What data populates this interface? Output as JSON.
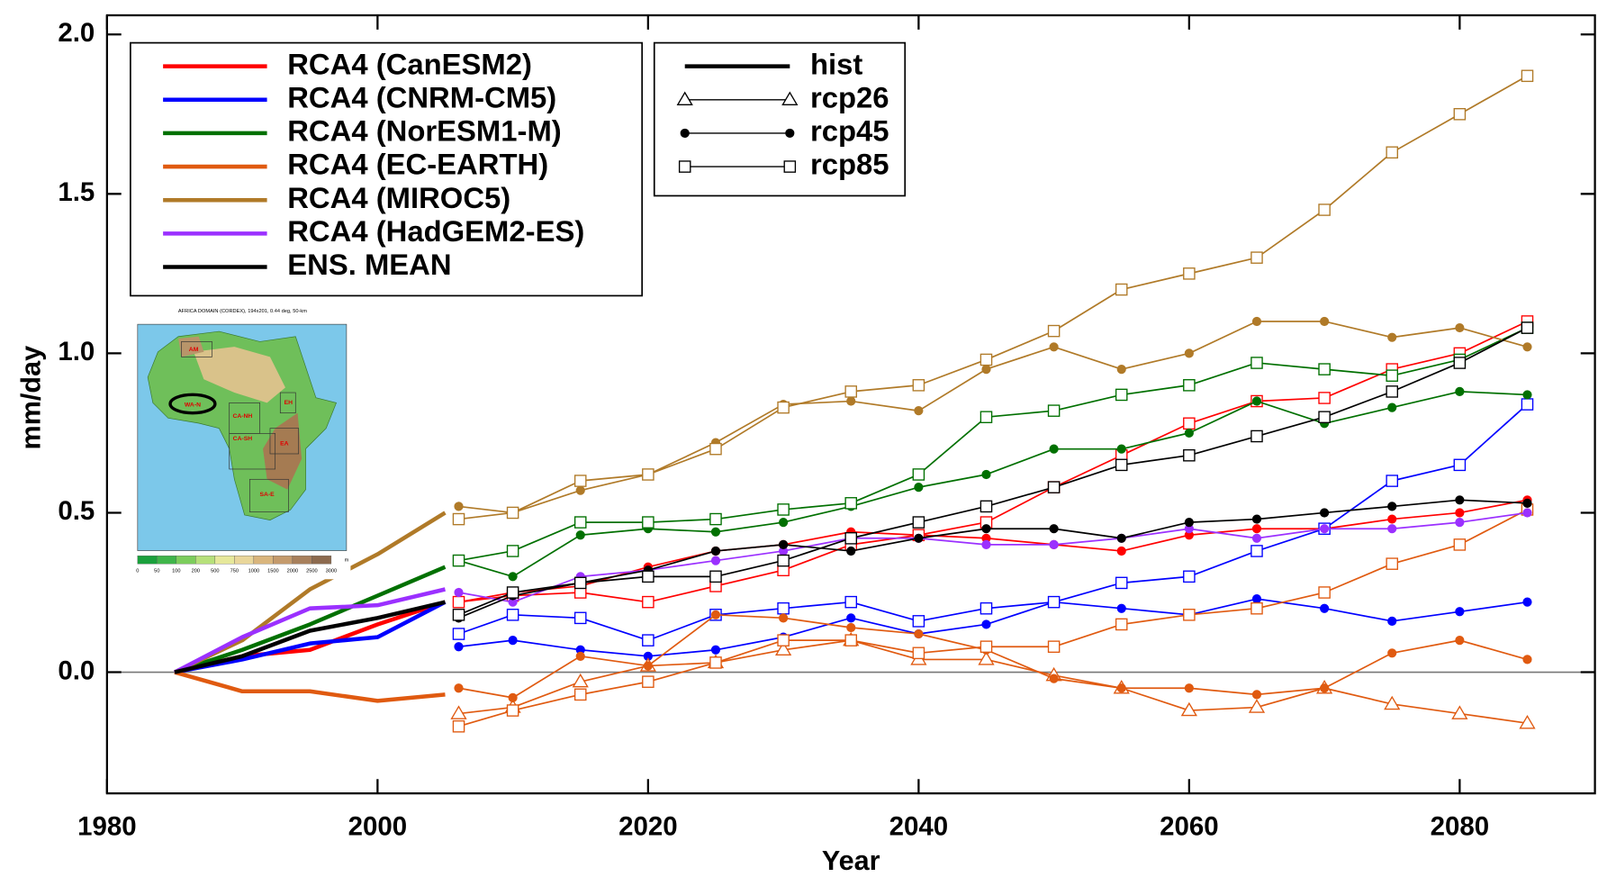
{
  "chart_data": {
    "type": "line",
    "xlabel": "Year",
    "ylabel": "mm/day",
    "xlim": [
      1980,
      2090
    ],
    "ylim": [
      -0.38,
      2.06
    ],
    "xticks": [
      1980,
      2000,
      2020,
      2040,
      2060,
      2080
    ],
    "yticks": [
      {
        "value": 0,
        "label": "0.0"
      },
      {
        "value": 0.5,
        "label": "0.5"
      },
      {
        "value": 1,
        "label": "1.0"
      },
      {
        "value": 1.5,
        "label": "1.5"
      },
      {
        "value": 2,
        "label": "2.0"
      }
    ],
    "x": [
      1985,
      1990,
      1995,
      2000,
      2005,
      2006,
      2010,
      2015,
      2020,
      2025,
      2030,
      2035,
      2040,
      2045,
      2050,
      2055,
      2060,
      2065,
      2070,
      2075,
      2080,
      2085
    ],
    "scenarios": [
      {
        "name": "hist",
        "marker": "none"
      },
      {
        "name": "rcp26",
        "marker": "triangle"
      },
      {
        "name": "rcp45",
        "marker": "circle"
      },
      {
        "name": "rcp85",
        "marker": "square"
      }
    ],
    "models": [
      {
        "name": "RCA4 (CanESM2)",
        "color": "#ff0000",
        "values": [
          [
            0,
            0.05,
            0.07,
            0.15,
            0.22,
            null,
            null,
            null,
            null,
            null,
            null,
            null,
            null,
            null,
            null,
            null,
            null,
            null,
            null,
            null,
            null,
            null
          ],
          null,
          [
            null,
            null,
            null,
            null,
            null,
            0.22,
            0.25,
            0.27,
            0.33,
            0.38,
            0.4,
            0.44,
            0.43,
            0.42,
            0.4,
            0.38,
            0.43,
            0.45,
            0.45,
            0.48,
            0.5,
            0.54
          ],
          [
            null,
            null,
            null,
            null,
            null,
            0.22,
            0.24,
            0.25,
            0.22,
            0.27,
            0.32,
            0.4,
            0.43,
            0.47,
            0.58,
            0.68,
            0.78,
            0.85,
            0.86,
            0.95,
            1.0,
            1.1
          ]
        ]
      },
      {
        "name": "RCA4 (CNRM-CM5)",
        "color": "#0000ff",
        "values": [
          [
            0,
            0.04,
            0.09,
            0.11,
            0.22,
            null,
            null,
            null,
            null,
            null,
            null,
            null,
            null,
            null,
            null,
            null,
            null,
            null,
            null,
            null,
            null,
            null
          ],
          null,
          [
            null,
            null,
            null,
            null,
            null,
            0.08,
            0.1,
            0.07,
            0.05,
            0.07,
            0.11,
            0.17,
            0.12,
            0.15,
            0.22,
            0.2,
            0.18,
            0.23,
            0.2,
            0.16,
            0.19,
            0.22
          ],
          [
            null,
            null,
            null,
            null,
            null,
            0.12,
            0.18,
            0.17,
            0.1,
            0.18,
            0.2,
            0.22,
            0.16,
            0.2,
            0.22,
            0.28,
            0.3,
            0.38,
            0.45,
            0.6,
            0.65,
            0.84
          ]
        ]
      },
      {
        "name": "RCA4 (NorESM1-M)",
        "color": "#007000",
        "values": [
          [
            0,
            0.07,
            0.15,
            0.24,
            0.33,
            null,
            null,
            null,
            null,
            null,
            null,
            null,
            null,
            null,
            null,
            null,
            null,
            null,
            null,
            null,
            null,
            null
          ],
          null,
          [
            null,
            null,
            null,
            null,
            null,
            0.35,
            0.3,
            0.43,
            0.45,
            0.44,
            0.47,
            0.52,
            0.58,
            0.62,
            0.7,
            0.7,
            0.75,
            0.85,
            0.78,
            0.83,
            0.88,
            0.87
          ],
          [
            null,
            null,
            null,
            null,
            null,
            0.35,
            0.38,
            0.47,
            0.47,
            0.48,
            0.51,
            0.53,
            0.62,
            0.8,
            0.82,
            0.87,
            0.9,
            0.97,
            0.95,
            0.93,
            0.98,
            1.08
          ]
        ]
      },
      {
        "name": "RCA4 (EC-EARTH)",
        "color": "#e05a10",
        "values": [
          [
            0,
            -0.06,
            -0.06,
            -0.09,
            -0.07,
            null,
            null,
            null,
            null,
            null,
            null,
            null,
            null,
            null,
            null,
            null,
            null,
            null,
            null,
            null,
            null,
            null
          ],
          [
            null,
            null,
            null,
            null,
            null,
            -0.13,
            -0.11,
            -0.03,
            0.02,
            0.03,
            0.07,
            0.1,
            0.04,
            0.04,
            -0.01,
            -0.05,
            -0.12,
            -0.11,
            -0.05,
            -0.1,
            -0.13,
            -0.16
          ],
          [
            null,
            null,
            null,
            null,
            null,
            -0.05,
            -0.08,
            0.05,
            0.02,
            0.18,
            0.17,
            0.14,
            0.12,
            0.07,
            -0.02,
            -0.05,
            -0.05,
            -0.07,
            -0.05,
            0.06,
            0.1,
            0.04
          ],
          [
            null,
            null,
            null,
            null,
            null,
            -0.17,
            -0.12,
            -0.07,
            -0.03,
            0.03,
            0.1,
            0.1,
            0.06,
            0.08,
            0.08,
            0.15,
            0.18,
            0.2,
            0.25,
            0.34,
            0.4,
            0.51
          ]
        ]
      },
      {
        "name": "RCA4 (MIROC5)",
        "color": "#b07a28",
        "values": [
          [
            0,
            0.1,
            0.26,
            0.37,
            0.5,
            null,
            null,
            null,
            null,
            null,
            null,
            null,
            null,
            null,
            null,
            null,
            null,
            null,
            null,
            null,
            null,
            null
          ],
          null,
          [
            null,
            null,
            null,
            null,
            null,
            0.52,
            0.5,
            0.57,
            0.62,
            0.72,
            0.84,
            0.85,
            0.82,
            0.95,
            1.02,
            0.95,
            1.0,
            1.1,
            1.1,
            1.05,
            1.08,
            1.02
          ],
          [
            null,
            null,
            null,
            null,
            null,
            0.48,
            0.5,
            0.6,
            0.62,
            0.7,
            0.83,
            0.88,
            0.9,
            0.98,
            1.07,
            1.2,
            1.25,
            1.3,
            1.45,
            1.63,
            1.75,
            1.87
          ]
        ]
      },
      {
        "name": "RCA4 (HadGEM2-ES)",
        "color": "#9b30ff",
        "values": [
          [
            0,
            0.11,
            0.2,
            0.21,
            0.26,
            null,
            null,
            null,
            null,
            null,
            null,
            null,
            null,
            null,
            null,
            null,
            null,
            null,
            null,
            null,
            null,
            null
          ],
          null,
          [
            null,
            null,
            null,
            null,
            null,
            0.25,
            0.22,
            0.3,
            0.32,
            0.35,
            0.38,
            0.42,
            0.42,
            0.4,
            0.4,
            0.42,
            0.45,
            0.42,
            0.45,
            0.45,
            0.47,
            0.5
          ],
          null
        ]
      },
      {
        "name": "ENS. MEAN",
        "color": "#000000",
        "values": [
          [
            0,
            0.05,
            0.13,
            0.17,
            0.22,
            null,
            null,
            null,
            null,
            null,
            null,
            null,
            null,
            null,
            null,
            null,
            null,
            null,
            null,
            null,
            null,
            null
          ],
          null,
          [
            null,
            null,
            null,
            null,
            null,
            0.17,
            0.24,
            0.28,
            0.32,
            0.38,
            0.4,
            0.38,
            0.42,
            0.45,
            0.45,
            0.42,
            0.47,
            0.48,
            0.5,
            0.52,
            0.54,
            0.53
          ],
          [
            null,
            null,
            null,
            null,
            null,
            0.18,
            0.25,
            0.28,
            0.3,
            0.3,
            0.35,
            0.42,
            0.47,
            0.52,
            0.58,
            0.65,
            0.68,
            0.74,
            0.8,
            0.88,
            0.97,
            1.08
          ]
        ]
      }
    ],
    "inset": {
      "title": "AFRICA DOMAIN (CORDEX), 194x201, 0.44 deg, 50-km",
      "regions": [
        "AM",
        "WA-N",
        "CA-NH",
        "CA-SH",
        "EH",
        "EA",
        "SA-E"
      ],
      "colorbar_labels": [
        "0",
        "50",
        "100",
        "200",
        "500",
        "750",
        "1000",
        "1500",
        "2000",
        "2500",
        "3000"
      ],
      "colorbar_unit": "m"
    }
  }
}
